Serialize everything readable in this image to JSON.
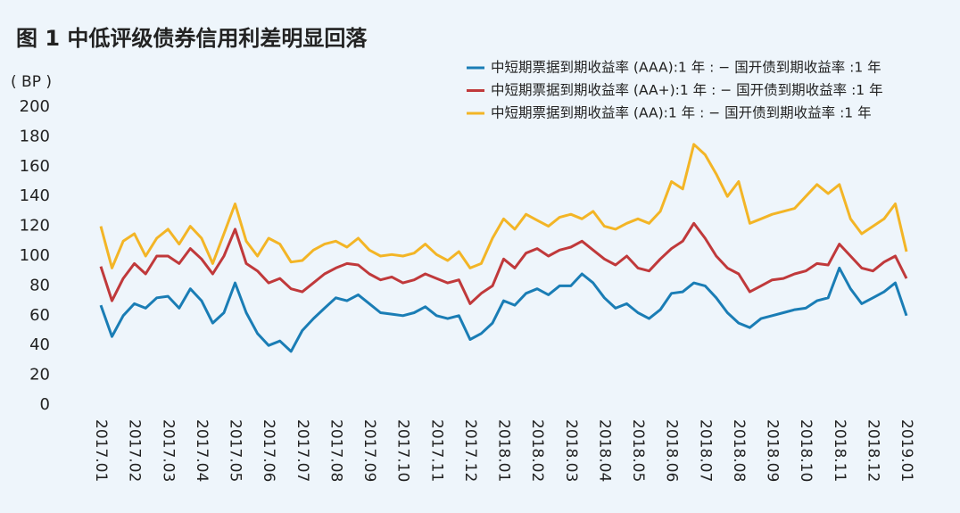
{
  "chart_data": {
    "type": "line",
    "title": "图 1  中低评级债券信用利差明显回落",
    "y_label": "( BP )",
    "categories": [
      "2017.01",
      null,
      null,
      "2017.02",
      null,
      null,
      "2017.03",
      null,
      null,
      "2017.04",
      null,
      null,
      "2017.05",
      null,
      null,
      "2017.06",
      null,
      null,
      "2017.07",
      null,
      null,
      "2017.08",
      null,
      null,
      "2017.09",
      null,
      null,
      "2017.10",
      null,
      null,
      "2017.11",
      null,
      null,
      "2017.12",
      null,
      null,
      "2018.01",
      null,
      null,
      "2018.02",
      null,
      null,
      "2018.03",
      null,
      null,
      "2018.04",
      null,
      null,
      "2018.05",
      null,
      null,
      "2018.06",
      null,
      null,
      "2018.07",
      null,
      null,
      "2018.08",
      null,
      null,
      "2018.09",
      null,
      null,
      "2018.10",
      null,
      null,
      "2018.11",
      null,
      null,
      "2018.12",
      null,
      null,
      "2019.01"
    ],
    "series": [
      {
        "name": "中短期票据到期收益率 (AAA):1 年 : − 国开债到期收益率 :1 年",
        "color": "#1a7db5",
        "values": [
          67,
          46,
          60,
          68,
          65,
          72,
          73,
          65,
          78,
          70,
          55,
          62,
          82,
          62,
          48,
          40,
          43,
          36,
          50,
          58,
          65,
          72,
          70,
          74,
          68,
          62,
          61,
          60,
          62,
          66,
          60,
          58,
          60,
          44,
          48,
          55,
          70,
          67,
          75,
          78,
          74,
          80,
          80,
          88,
          82,
          72,
          65,
          68,
          62,
          58,
          64,
          75,
          76,
          82,
          80,
          72,
          62,
          55,
          52,
          58,
          60,
          62,
          64,
          65,
          70,
          72,
          92,
          78,
          68,
          72,
          76,
          82,
          60
        ]
      },
      {
        "name": "中短期票据到期收益率 (AA+):1 年 : − 国开债到期收益率 :1 年",
        "color": "#c0393b",
        "values": [
          93,
          70,
          85,
          95,
          88,
          100,
          100,
          95,
          105,
          98,
          88,
          100,
          118,
          95,
          90,
          82,
          85,
          78,
          76,
          82,
          88,
          92,
          95,
          94,
          88,
          84,
          86,
          82,
          84,
          88,
          85,
          82,
          84,
          68,
          75,
          80,
          98,
          92,
          102,
          105,
          100,
          104,
          106,
          110,
          104,
          98,
          94,
          100,
          92,
          90,
          98,
          105,
          110,
          122,
          112,
          100,
          92,
          88,
          76,
          80,
          84,
          85,
          88,
          90,
          95,
          94,
          108,
          100,
          92,
          90,
          96,
          100,
          85
        ]
      },
      {
        "name": "中短期票据到期收益率 (AA):1 年 : − 国开债到期收益率 :1 年",
        "color": "#f3b526",
        "values": [
          120,
          92,
          110,
          115,
          100,
          112,
          118,
          108,
          120,
          112,
          95,
          115,
          135,
          110,
          100,
          112,
          108,
          96,
          97,
          104,
          108,
          110,
          106,
          112,
          104,
          100,
          101,
          100,
          102,
          108,
          101,
          97,
          103,
          92,
          95,
          112,
          125,
          118,
          128,
          124,
          120,
          126,
          128,
          125,
          130,
          120,
          118,
          122,
          125,
          122,
          130,
          150,
          145,
          175,
          168,
          155,
          140,
          150,
          122,
          125,
          128,
          130,
          132,
          140,
          148,
          142,
          148,
          125,
          115,
          120,
          125,
          135,
          103
        ]
      }
    ],
    "ylim": [
      0,
      200
    ],
    "yticks": [
      0,
      20,
      40,
      60,
      80,
      100,
      120,
      140,
      160,
      180,
      200
    ],
    "legend": "upper right"
  }
}
